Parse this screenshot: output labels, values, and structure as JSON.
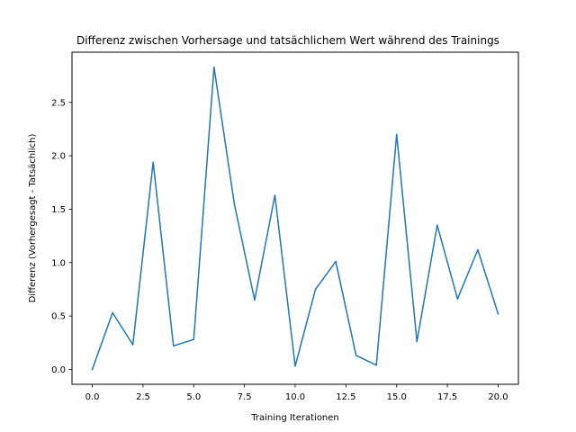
{
  "chart_data": {
    "type": "line",
    "title": "Differenz zwischen Vorhersage und tatsächlichem Wert während des Trainings",
    "xlabel": "Training Iterationen",
    "ylabel": "Differenz (Vorhergesagt - Tatsächlich)",
    "xlim": [
      -1.0,
      21.0
    ],
    "ylim": [
      -0.14,
      2.97
    ],
    "xticks": [
      0.0,
      2.5,
      5.0,
      7.5,
      10.0,
      12.5,
      15.0,
      17.5,
      20.0
    ],
    "xtick_labels": [
      "0.0",
      "2.5",
      "5.0",
      "7.5",
      "10.0",
      "12.5",
      "15.0",
      "17.5",
      "20.0"
    ],
    "yticks": [
      0.0,
      0.5,
      1.0,
      1.5,
      2.0,
      2.5
    ],
    "ytick_labels": [
      "0.0",
      "0.5",
      "1.0",
      "1.5",
      "2.0",
      "2.5"
    ],
    "grid": false,
    "series": [
      {
        "color": "#1f77b4",
        "x": [
          0,
          1,
          2,
          3,
          4,
          5,
          6,
          7,
          8,
          9,
          10,
          11,
          12,
          13,
          14,
          15,
          16,
          17,
          18,
          19,
          20
        ],
        "values": [
          0.0,
          0.53,
          0.23,
          1.94,
          0.22,
          0.28,
          2.83,
          1.55,
          0.65,
          1.63,
          0.03,
          0.75,
          1.01,
          0.13,
          0.04,
          2.2,
          0.26,
          1.35,
          0.66,
          1.12,
          0.52
        ]
      }
    ]
  }
}
